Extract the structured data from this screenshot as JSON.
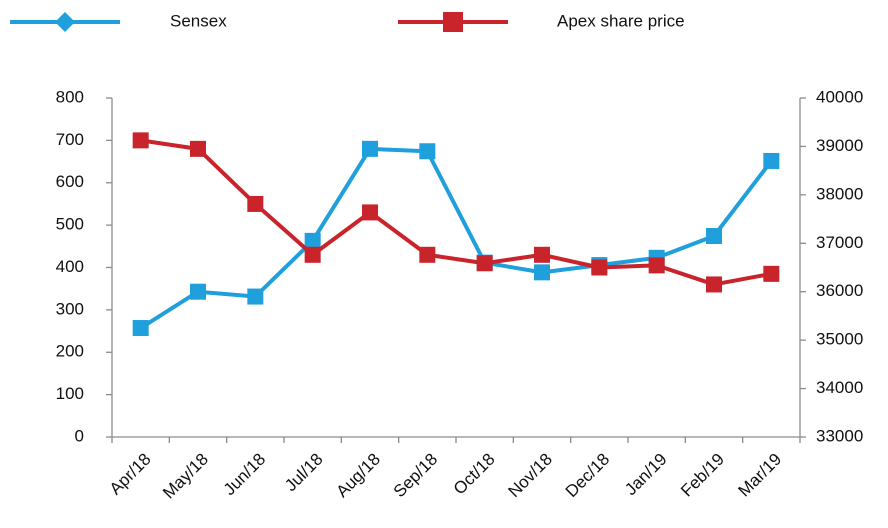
{
  "chart_data": {
    "type": "line",
    "categories": [
      "Apr/18",
      "May/18",
      "Jun/18",
      "Jul/18",
      "Aug/18",
      "Sep/18",
      "Oct/18",
      "Nov/18",
      "Dec/18",
      "Jan/19",
      "Feb/19",
      "Mar/19"
    ],
    "series": [
      {
        "name": "Sensex",
        "color": "#1f9fdc",
        "axis": "y2",
        "values": [
          35250,
          36000,
          35900,
          37050,
          38950,
          38900,
          36600,
          36400,
          36550,
          36700,
          37150,
          38700
        ]
      },
      {
        "name": "Apex share price",
        "color": "#c9232b",
        "values": [
          700,
          680,
          550,
          430,
          530,
          430,
          410,
          430,
          400,
          405,
          360,
          385
        ]
      }
    ],
    "ylim": [
      0,
      800
    ],
    "yticks": [
      0,
      100,
      200,
      300,
      400,
      500,
      600,
      700,
      800
    ],
    "y2lim": [
      33000,
      40000
    ],
    "y2ticks": [
      33000,
      34000,
      35000,
      36000,
      37000,
      38000,
      39000,
      40000
    ],
    "legend": "top",
    "grid": false
  }
}
